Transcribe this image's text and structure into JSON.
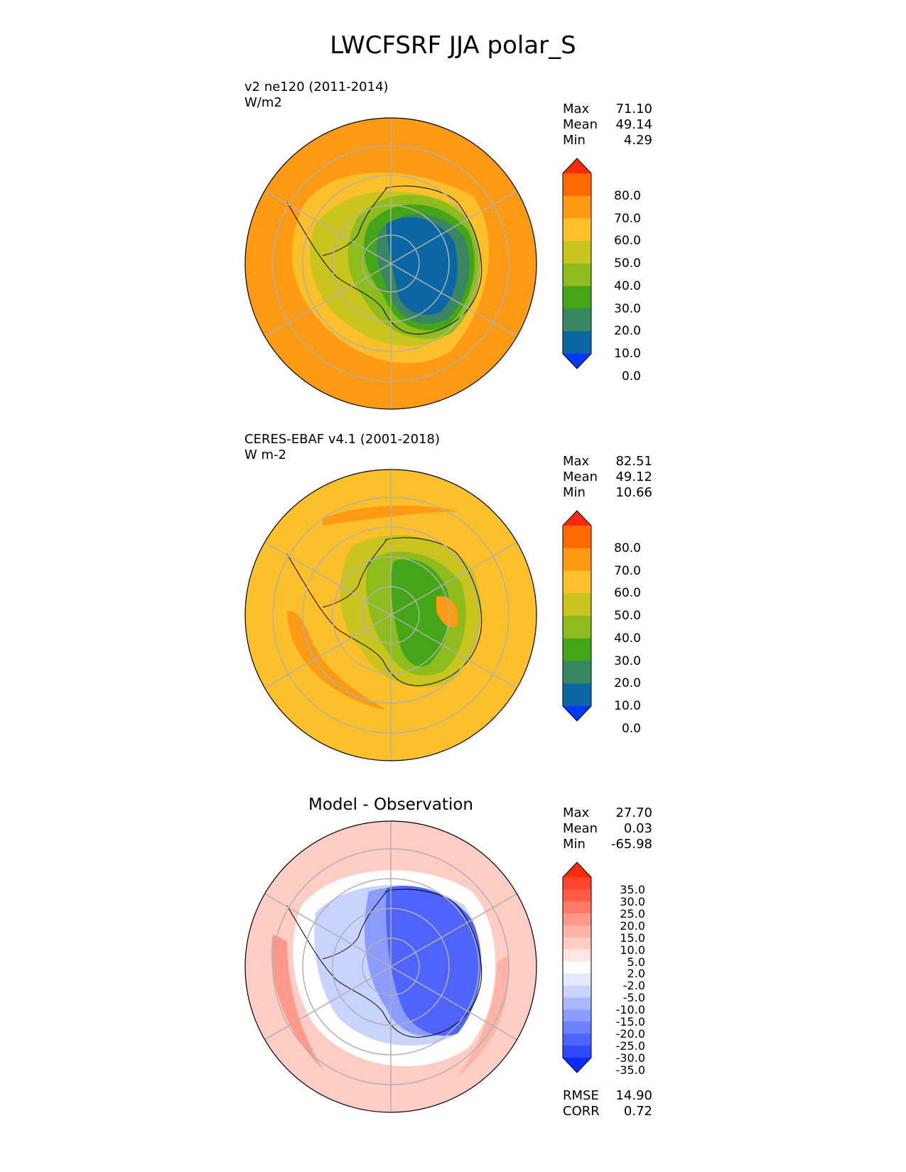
{
  "figure": {
    "title": "LWCFSRF JJA polar_S"
  },
  "panels": [
    {
      "id": "test",
      "name_text": "v2 ne120 (2011-2014)",
      "units_text": "W/m2",
      "panel_title": "",
      "stats": [
        {
          "label": "Max",
          "value": "71.10"
        },
        {
          "label": "Mean",
          "value": "49.14"
        },
        {
          "label": "Min",
          "value": "4.29"
        }
      ],
      "colorbar": {
        "tick_labels": [
          "80.0",
          "70.0",
          "60.0",
          "50.0",
          "40.0",
          "30.0",
          "20.0",
          "10.0",
          "0.0"
        ],
        "colors": [
          "#ff2a0a",
          "#ff6a00",
          "#ff9a14",
          "#fcc12a",
          "#c9c51e",
          "#8ebc1c",
          "#45a519",
          "#3a8663",
          "#0a67a3",
          "#0537ff"
        ]
      }
    },
    {
      "id": "ref",
      "name_text": "CERES-EBAF v4.1 (2001-2018)",
      "units_text": "W m-2",
      "panel_title": "",
      "stats": [
        {
          "label": "Max",
          "value": "82.51"
        },
        {
          "label": "Mean",
          "value": "49.12"
        },
        {
          "label": "Min",
          "value": "10.66"
        }
      ],
      "colorbar": {
        "tick_labels": [
          "80.0",
          "70.0",
          "60.0",
          "50.0",
          "40.0",
          "30.0",
          "20.0",
          "10.0",
          "0.0"
        ],
        "colors": [
          "#ff2a0a",
          "#ff6a00",
          "#ff9a14",
          "#fcc12a",
          "#c9c51e",
          "#8ebc1c",
          "#45a519",
          "#3a8663",
          "#0a67a3",
          "#0537ff"
        ]
      }
    },
    {
      "id": "diff",
      "name_text": "",
      "units_text": "",
      "panel_title": "Model - Observation",
      "stats": [
        {
          "label": "Max",
          "value": "27.70"
        },
        {
          "label": "Mean",
          "value": "0.03"
        },
        {
          "label": "Min",
          "value": "-65.98"
        }
      ],
      "metrics": [
        {
          "label": "RMSE",
          "value": "14.90"
        },
        {
          "label": "CORR",
          "value": "0.72"
        }
      ],
      "colorbar": {
        "tick_labels": [
          "35.0",
          "30.0",
          "25.0",
          "20.0",
          "15.0",
          "10.0",
          "5.0",
          "2.0",
          "-2.0",
          "-5.0",
          "-10.0",
          "-15.0",
          "-20.0",
          "-25.0",
          "-30.0",
          "-35.0"
        ],
        "colors": [
          "#ff2a0a",
          "#ff4530",
          "#ff5b45",
          "#ff7a66",
          "#ff9a8a",
          "#ffb3a8",
          "#ffcdc4",
          "#ffe6e2",
          "#ffffff",
          "#e6eaff",
          "#c9d3ff",
          "#aab8ff",
          "#8b9cff",
          "#6d80ff",
          "#4f64ff",
          "#3148ff",
          "#0a2cff"
        ]
      }
    }
  ],
  "chart_data": {
    "type": "heatmap",
    "projection": "south polar stereographic",
    "variable": "LWCFSRF",
    "season": "JJA",
    "region": "polar_S",
    "grid": true,
    "coastlines": true,
    "maps": [
      {
        "name": "v2 ne120 (2011-2014)",
        "units": "W/m2",
        "max": 71.1,
        "mean": 49.14,
        "min": 4.29,
        "contour_levels": [
          0,
          10,
          20,
          30,
          40,
          50,
          60,
          70,
          80
        ]
      },
      {
        "name": "CERES-EBAF v4.1 (2001-2018)",
        "units": "W m-2",
        "max": 82.51,
        "mean": 49.12,
        "min": 10.66,
        "contour_levels": [
          0,
          10,
          20,
          30,
          40,
          50,
          60,
          70,
          80
        ]
      },
      {
        "name": "Model - Observation",
        "max": 27.7,
        "mean": 0.03,
        "min": -65.98,
        "rmse": 14.9,
        "corr": 0.72,
        "contour_levels": [
          -35,
          -30,
          -25,
          -20,
          -15,
          -10,
          -5,
          -2,
          2,
          5,
          10,
          15,
          20,
          25,
          30,
          35
        ]
      }
    ]
  }
}
